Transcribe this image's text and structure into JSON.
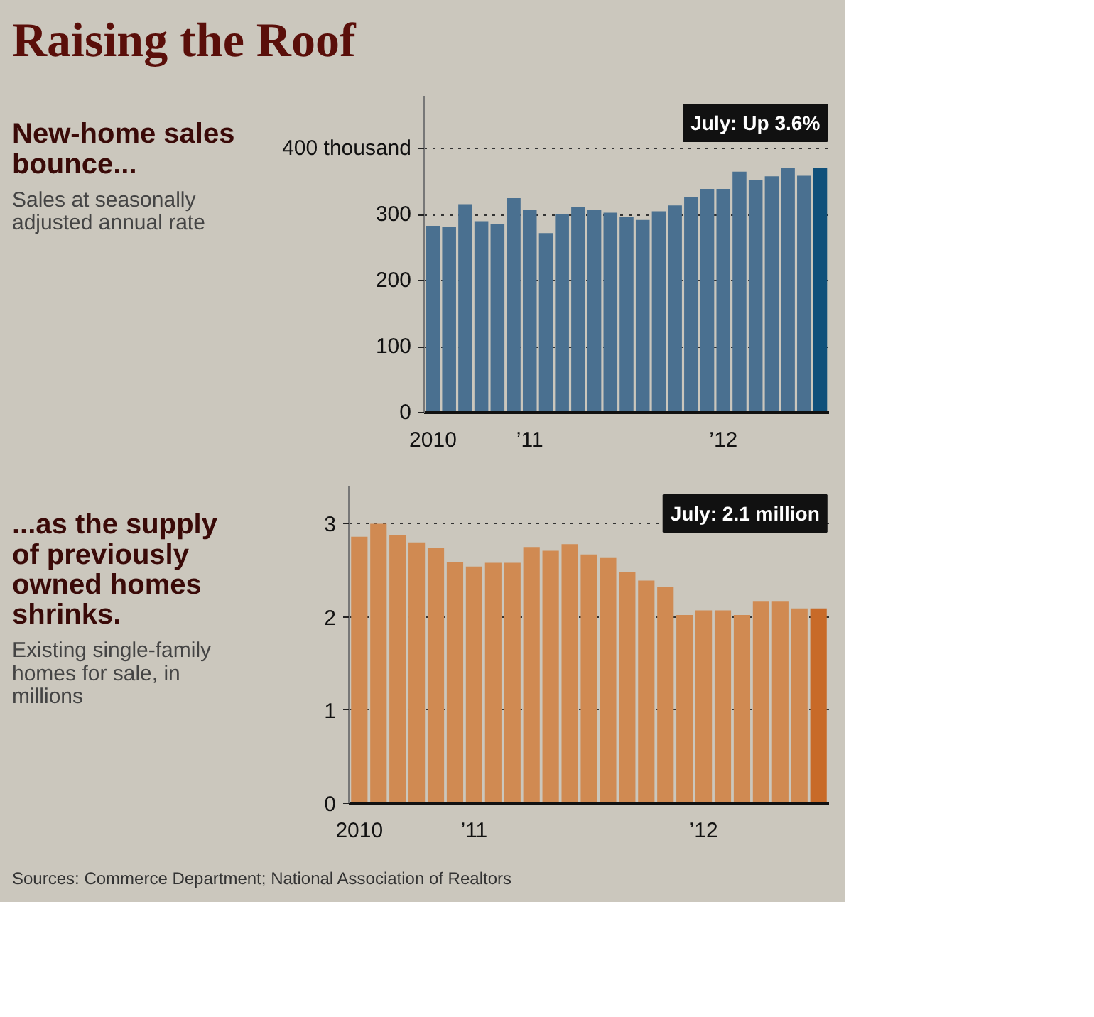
{
  "chart_data": [
    {
      "type": "bar",
      "title": "Raising the Roof",
      "subtitle": "New-home sales bounce...",
      "categories": [
        "2010",
        null,
        null,
        null,
        null,
        null,
        "’11",
        null,
        null,
        null,
        null,
        null,
        null,
        null,
        null,
        null,
        null,
        null,
        "’12",
        null,
        null,
        null,
        null,
        null,
        null
      ],
      "values": [
        283,
        281,
        316,
        290,
        286,
        325,
        307,
        272,
        301,
        312,
        307,
        303,
        297,
        292,
        305,
        314,
        327,
        339,
        339,
        365,
        352,
        358,
        371,
        359,
        371
      ],
      "colors": [
        "#4a7090",
        "#4a7090",
        "#4a7090",
        "#4a7090",
        "#4a7090",
        "#4a7090",
        "#4a7090",
        "#4a7090",
        "#4a7090",
        "#4a7090",
        "#4a7090",
        "#4a7090",
        "#4a7090",
        "#4a7090",
        "#4a7090",
        "#4a7090",
        "#4a7090",
        "#4a7090",
        "#4a7090",
        "#4a7090",
        "#4a7090",
        "#4a7090",
        "#4a7090",
        "#4a7090",
        "#10507a"
      ],
      "ylim": [
        0,
        480
      ],
      "yticks": [
        0,
        100,
        200,
        300,
        {
          "value": 400,
          "label": "400 thousand"
        }
      ],
      "grid": "y",
      "annotations": [
        "Sales at seasonally adjusted annual rate",
        "July: Up 3.6%"
      ]
    },
    {
      "type": "bar",
      "subtitle": "...as the supply of previously owned homes shrinks.",
      "categories": [
        "2010",
        null,
        null,
        null,
        null,
        null,
        "’11",
        null,
        null,
        null,
        null,
        null,
        null,
        null,
        null,
        null,
        null,
        null,
        "’12",
        null,
        null,
        null,
        null,
        null,
        null
      ],
      "values": [
        2.86,
        3.0,
        2.88,
        2.8,
        2.74,
        2.59,
        2.54,
        2.58,
        2.58,
        2.75,
        2.71,
        2.78,
        2.67,
        2.64,
        2.48,
        2.39,
        2.32,
        2.02,
        2.07,
        2.07,
        2.02,
        2.17,
        2.17,
        2.09,
        2.09
      ],
      "colors": [
        "#d08a52",
        "#d08a52",
        "#d08a52",
        "#d08a52",
        "#d08a52",
        "#d08a52",
        "#d08a52",
        "#d08a52",
        "#d08a52",
        "#d08a52",
        "#d08a52",
        "#d08a52",
        "#d08a52",
        "#d08a52",
        "#d08a52",
        "#d08a52",
        "#d08a52",
        "#d08a52",
        "#d08a52",
        "#d08a52",
        "#d08a52",
        "#d08a52",
        "#d08a52",
        "#d08a52",
        "#c86a28"
      ],
      "ylim": [
        0,
        3.4
      ],
      "yticks": [
        0,
        1,
        2,
        3
      ],
      "grid": "y",
      "annotations": [
        "Existing single-family homes for sale, in millions",
        "July: 2.1 million",
        "Sources: Commerce Department; National Association of Realtors"
      ]
    }
  ]
}
